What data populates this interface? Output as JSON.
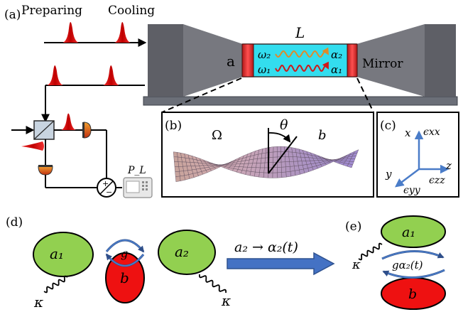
{
  "panels": {
    "a": "(a)",
    "b": "(b)",
    "c": "(c)",
    "d": "(d)",
    "e": "(e)"
  },
  "pulse_labels": {
    "preparing": "Preparing",
    "cooling": "Cooling"
  },
  "cavity": {
    "length": "L",
    "left_mirror": "a",
    "right_mirror": "Mirror",
    "omega2": "ω₂",
    "omega1": "ω₁",
    "alpha2": "α₂",
    "alpha1": "α₁",
    "wave_colors": {
      "upper": "#e08a2a",
      "lower": "#d01818"
    }
  },
  "detection": {
    "power": "P_L",
    "plus": "+",
    "minus": "−"
  },
  "panel_b": {
    "omega": "Ω",
    "theta": "θ",
    "b": "b"
  },
  "panel_c": {
    "x": "x",
    "y": "y",
    "z": "z",
    "exx": "ϵxx",
    "eyy": "ϵyy",
    "ezz": "ϵzz"
  },
  "panel_d": {
    "a1": "a₁",
    "a2": "a₂",
    "b": "b",
    "g": "g",
    "kappa_left": "κ",
    "kappa_right": "κ",
    "arrow_label": "a₂ → α₂(t)"
  },
  "panel_e": {
    "a1": "a₁",
    "b": "b",
    "coupling": "gα₂(t)",
    "kappa": "κ"
  },
  "colors": {
    "mode_green": "#92d050",
    "phonon_red": "#ee1111",
    "cavity_cyan": "#33ddee",
    "arrow_blue": "#4472c4",
    "axis_blue": "#4a7cc8",
    "pulse_red": "#d01010"
  }
}
